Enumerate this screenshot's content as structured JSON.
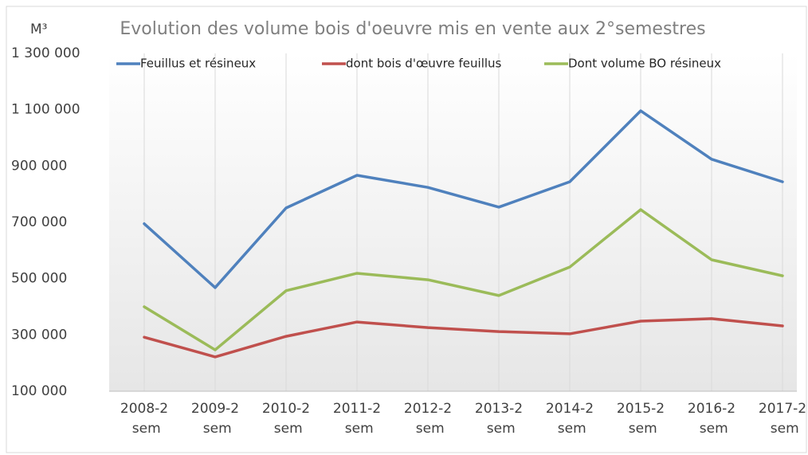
{
  "chart_data": {
    "type": "line",
    "title": "Evolution des volume bois d'oeuvre mis en vente aux 2°semestres",
    "y_label": "M³",
    "categories": [
      "2008-2 sem",
      "2009-2 sem",
      "2010-2 sem",
      "2011-2 sem",
      "2012-2 sem",
      "2013-2 sem",
      "2014-2 sem",
      "2015-2 sem",
      "2016-2 sem",
      "2017-2 sem"
    ],
    "series": [
      {
        "name": "Feuillus et résineux",
        "color": "#4f81bd",
        "values": [
          695000,
          468000,
          751000,
          867000,
          824000,
          754000,
          844000,
          1096000,
          924000,
          844000
        ]
      },
      {
        "name": "dont bois d'œuvre feuillus",
        "color": "#c0504d",
        "values": [
          292000,
          222000,
          295000,
          346000,
          326000,
          312000,
          304000,
          349000,
          358000,
          332000
        ]
      },
      {
        "name": "Dont volume BO résineux",
        "color": "#9bbb59",
        "values": [
          400000,
          247000,
          457000,
          519000,
          496000,
          440000,
          541000,
          745000,
          567000,
          510000
        ]
      }
    ],
    "ylim": [
      100000,
      1300000
    ],
    "yticks": [
      {
        "value": 100000,
        "label": "100 000"
      },
      {
        "value": 300000,
        "label": "300 000"
      },
      {
        "value": 500000,
        "label": "500 000"
      },
      {
        "value": 700000,
        "label": "700 000"
      },
      {
        "value": 900000,
        "label": "900 000"
      },
      {
        "value": 1100000,
        "label": "1 100 000"
      },
      {
        "value": 1300000,
        "label": "1 300 000"
      }
    ],
    "grid": "x",
    "legend": "top"
  }
}
